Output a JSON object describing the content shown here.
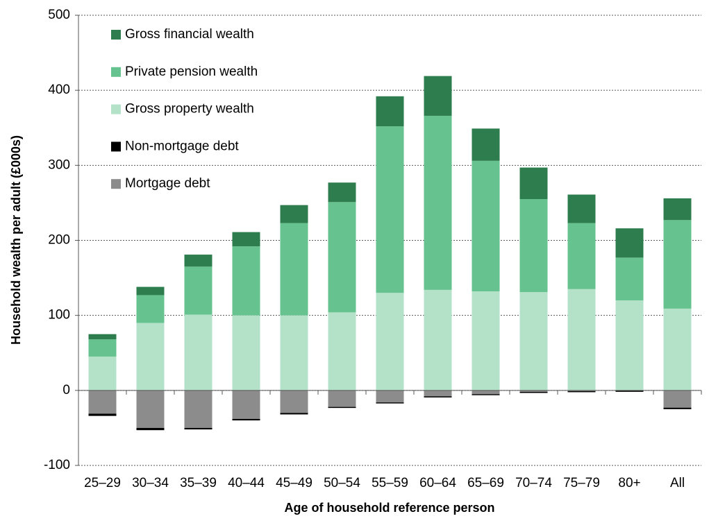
{
  "chart_data": {
    "type": "stacked_bar",
    "x_label": "Age of household reference person",
    "y_label": "Household wealth per adult (£000s)",
    "categories": [
      "25–29",
      "30–34",
      "35–39",
      "40–44",
      "45–49",
      "50–54",
      "55–59",
      "60–64",
      "65–69",
      "70–74",
      "75–79",
      "80+",
      "All"
    ],
    "series": [
      {
        "name": "Gross financial wealth",
        "color": "#2e7d4f",
        "values": [
          7,
          11,
          16,
          19,
          24,
          26,
          40,
          53,
          43,
          42,
          38,
          39,
          29
        ]
      },
      {
        "name": "Private pension wealth",
        "color": "#66c28f",
        "values": [
          23,
          37,
          64,
          92,
          123,
          147,
          222,
          232,
          174,
          124,
          88,
          57,
          118
        ]
      },
      {
        "name": "Gross property wealth",
        "color": "#b3e2c8",
        "values": [
          45,
          90,
          101,
          100,
          100,
          104,
          130,
          134,
          132,
          131,
          135,
          120,
          109
        ]
      },
      {
        "name": "Non-mortgage debt",
        "color": "#000000",
        "values": [
          -3,
          -3,
          -2,
          -2,
          -2,
          -1,
          -1,
          -1,
          -0.5,
          -0.5,
          -0.3,
          -0.3,
          -2
        ]
      },
      {
        "name": "Mortgage debt",
        "color": "#8c8c8c",
        "values": [
          -31,
          -50,
          -50,
          -38,
          -30,
          -22,
          -16,
          -8,
          -5,
          -2,
          -1,
          -0.5,
          -23
        ]
      }
    ],
    "ylim": [
      -100,
      500
    ],
    "yticks": [
      -100,
      0,
      100,
      200,
      300,
      400,
      500
    ],
    "grid": true,
    "legend": "upper left"
  }
}
